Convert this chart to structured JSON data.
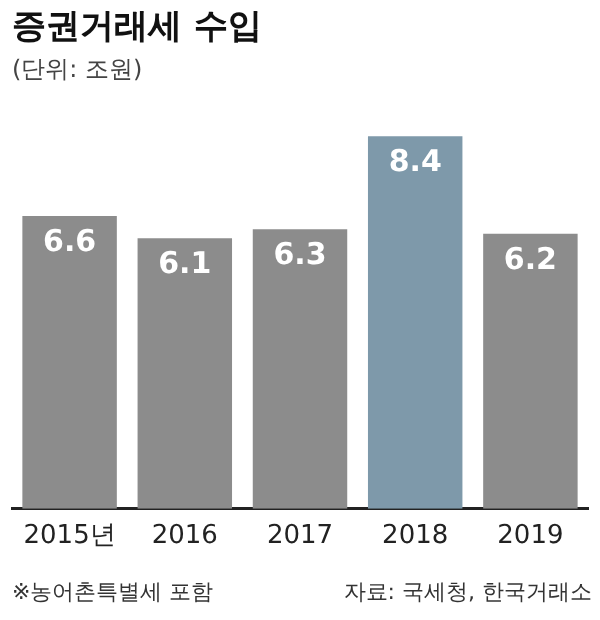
{
  "chart_data": {
    "type": "bar",
    "title": "증권거래세 수입",
    "subtitle": "(단위: 조원)",
    "categories": [
      "2015년",
      "2016",
      "2017",
      "2018",
      "2019"
    ],
    "values": [
      6.6,
      6.1,
      6.3,
      8.4,
      6.2
    ],
    "colors": [
      "#8c8c8c",
      "#8c8c8c",
      "#8c8c8c",
      "#7e99aa",
      "#8c8c8c"
    ],
    "tick_labels": "x",
    "grid": false,
    "legend": false,
    "data_labels": true,
    "annotations": [
      "※농어촌특별세 포함",
      "자료: 국세청, 한국거래소"
    ]
  }
}
